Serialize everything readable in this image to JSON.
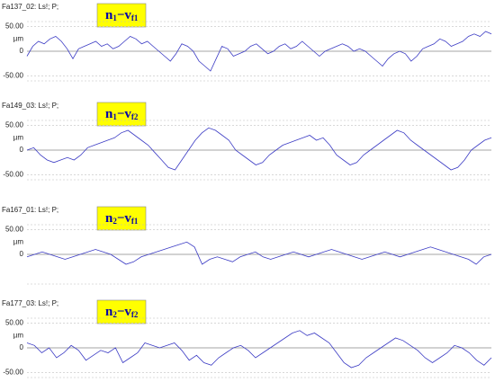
{
  "chart_data": [
    {
      "type": "line",
      "title": "Fa137_02: Ls!; P;",
      "annotation": [
        "n",
        "1",
        "−v",
        "f1"
      ],
      "ylabel": "µm",
      "ylim": [
        -60,
        60
      ],
      "yticks": [
        {
          "value": 50,
          "label": "50.00"
        },
        0,
        {
          "value": -50,
          "label": "-50.00"
        }
      ],
      "color": "#3b3bc4",
      "values": [
        -10,
        10,
        20,
        15,
        25,
        30,
        20,
        5,
        -15,
        5,
        10,
        15,
        20,
        10,
        15,
        5,
        10,
        20,
        30,
        25,
        15,
        20,
        10,
        0,
        -10,
        -20,
        -5,
        15,
        10,
        0,
        -20,
        -30,
        -40,
        -15,
        10,
        5,
        -10,
        -5,
        0,
        10,
        15,
        5,
        -5,
        0,
        10,
        15,
        5,
        10,
        20,
        10,
        0,
        -10,
        0,
        5,
        10,
        15,
        10,
        0,
        5,
        0,
        -10,
        -20,
        -30,
        -15,
        -5,
        0,
        -5,
        -20,
        -10,
        5,
        10,
        15,
        25,
        20,
        10,
        15,
        20,
        30,
        35,
        30,
        40,
        35
      ]
    },
    {
      "type": "line",
      "title": "Fa149_03: Ls!; P;",
      "annotation": [
        "n",
        "1",
        "−v",
        "f2"
      ],
      "ylabel": "µm",
      "ylim": [
        -60,
        60
      ],
      "yticks": [
        {
          "value": 50,
          "label": "50.00"
        },
        0,
        {
          "value": -50,
          "label": "-50.00"
        }
      ],
      "color": "#3b3bc4",
      "values": [
        0,
        5,
        -10,
        -20,
        -25,
        -20,
        -15,
        -20,
        -10,
        5,
        10,
        15,
        20,
        25,
        35,
        40,
        30,
        20,
        10,
        -5,
        -20,
        -35,
        -40,
        -20,
        0,
        20,
        35,
        45,
        40,
        30,
        20,
        0,
        -10,
        -20,
        -30,
        -25,
        -10,
        0,
        10,
        15,
        20,
        25,
        30,
        20,
        25,
        10,
        -10,
        -20,
        -30,
        -25,
        -10,
        0,
        10,
        20,
        30,
        40,
        35,
        20,
        10,
        0,
        -10,
        -20,
        -30,
        -40,
        -35,
        -20,
        0,
        10,
        20,
        25
      ]
    },
    {
      "type": "line",
      "title": "Fa167_01: Ls!; P;",
      "annotation": [
        "n",
        "2",
        "−v",
        "f1"
      ],
      "ylabel": "µm",
      "ylim": [
        -60,
        60
      ],
      "yticks": [
        {
          "value": 50,
          "label": "50.00"
        },
        0
      ],
      "color": "#3b3bc4",
      "values": [
        -5,
        0,
        5,
        0,
        -5,
        -10,
        -5,
        0,
        5,
        10,
        5,
        0,
        -10,
        -20,
        -15,
        -5,
        0,
        5,
        10,
        15,
        20,
        25,
        15,
        -20,
        -10,
        -5,
        -10,
        -15,
        -5,
        0,
        5,
        -5,
        -10,
        -5,
        0,
        5,
        0,
        -5,
        0,
        5,
        10,
        5,
        0,
        -5,
        -10,
        -5,
        0,
        5,
        0,
        -5,
        0,
        5,
        10,
        15,
        10,
        5,
        0,
        -5,
        -10,
        -20,
        -5,
        0
      ]
    },
    {
      "type": "line",
      "title": "Fa177_03: Ls!; P;",
      "annotation": [
        "n",
        "2",
        "−v",
        "f2"
      ],
      "ylabel": "µm",
      "ylim": [
        -60,
        60
      ],
      "yticks": [
        {
          "value": 50,
          "label": "50.00"
        },
        0,
        {
          "value": -50,
          "label": "-50.00"
        }
      ],
      "color": "#3b3bc4",
      "values": [
        10,
        5,
        -10,
        0,
        -20,
        -10,
        5,
        -5,
        -25,
        -15,
        -5,
        -10,
        0,
        -30,
        -20,
        -10,
        10,
        5,
        0,
        5,
        10,
        -5,
        -25,
        -15,
        -30,
        -35,
        -20,
        -10,
        0,
        5,
        -5,
        -20,
        -10,
        0,
        10,
        20,
        30,
        35,
        25,
        30,
        20,
        10,
        -10,
        -30,
        -40,
        -35,
        -20,
        -10,
        0,
        10,
        20,
        15,
        5,
        -5,
        -20,
        -30,
        -20,
        -10,
        5,
        0,
        -10,
        -25,
        -35,
        -20
      ]
    }
  ]
}
